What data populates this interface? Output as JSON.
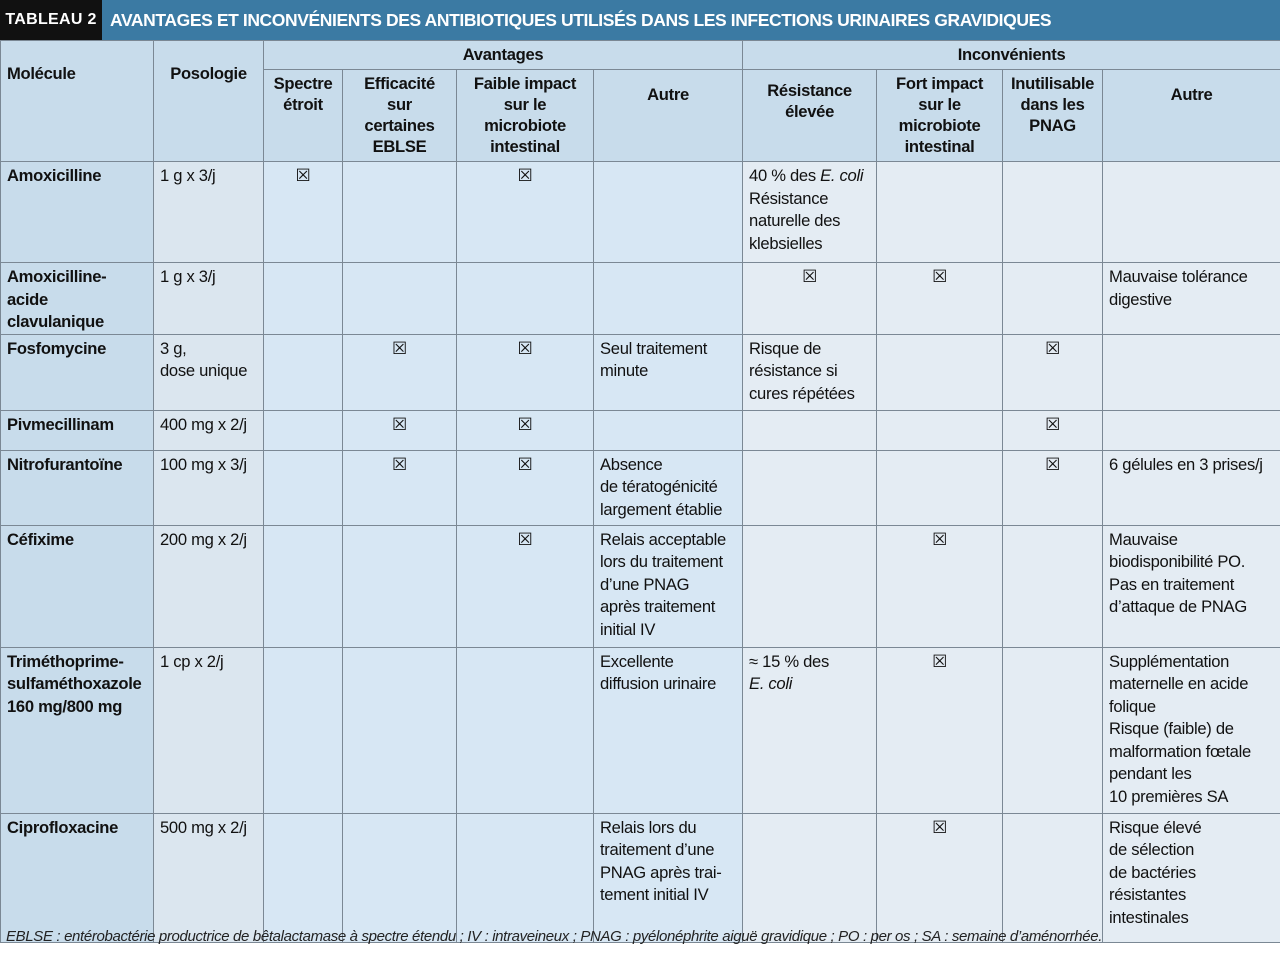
{
  "banner": {
    "tag": "TABLEAU 2",
    "title": "AVANTAGES ET INCONVÉNIENTS DES ANTIBIOTIQUES UTILISÉS DANS LES INFECTIONS URINAIRES GRAVIDIQUES"
  },
  "header": {
    "molecule": "Molécule",
    "posologie": "Posologie",
    "avantages": "Avantages",
    "inconvenients": "Inconvénients",
    "adv": {
      "spectre": "Spectre\nétroit",
      "efficacite": "Efficacité\nsur\ncertaines\nEBLSE",
      "faible_impact": "Faible impact\nsur le\nmicrobiote\nintestinal",
      "autre": "Autre"
    },
    "inc": {
      "resistance": "Résistance\nélevée",
      "fort_impact": "Fort impact\nsur le\nmicrobiote\nintestinal",
      "inutilisable": "Inutilisable\ndans les\nPNAG",
      "autre": "Autre"
    }
  },
  "check_symbol": "☒",
  "rows": [
    {
      "molecule": "Amoxicilline",
      "posologie": "1 g x 3/j",
      "spectre": "☒",
      "efficacite": "",
      "faible_impact": "☒",
      "adv_autre": "",
      "resistance": "40 % des E. coli\nRésistance\nnaturelle des\nklebsielles",
      "fort_impact": "",
      "inutilisable": "",
      "inc_autre": ""
    },
    {
      "molecule": "Amoxicilline-acide\nclavulanique",
      "posologie": "1 g x 3/j",
      "spectre": "",
      "efficacite": "",
      "faible_impact": "",
      "adv_autre": "",
      "resistance": "☒",
      "fort_impact": "☒",
      "inutilisable": "",
      "inc_autre": "Mauvaise tolérance\ndigestive"
    },
    {
      "molecule": "Fosfomycine",
      "posologie": "3 g,\ndose unique",
      "spectre": "",
      "efficacite": "☒",
      "faible_impact": "☒",
      "adv_autre": "Seul traitement\nminute",
      "resistance": "Risque de\nrésistance si\ncures répétées",
      "fort_impact": "",
      "inutilisable": "☒",
      "inc_autre": ""
    },
    {
      "molecule": "Pivmecillinam",
      "posologie": "400 mg x 2/j",
      "spectre": "",
      "efficacite": "☒",
      "faible_impact": "☒",
      "adv_autre": "",
      "resistance": "",
      "fort_impact": "",
      "inutilisable": "☒",
      "inc_autre": ""
    },
    {
      "molecule": "Nitrofurantoïne",
      "posologie": "100 mg x 3/j",
      "spectre": "",
      "efficacite": "☒",
      "faible_impact": "☒",
      "adv_autre": "Absence\nde tératogénicité\nlargement établie",
      "resistance": "",
      "fort_impact": "",
      "inutilisable": "☒",
      "inc_autre": "6 gélules en 3 prises/j"
    },
    {
      "molecule": "Céfixime",
      "posologie": "200 mg x 2/j",
      "spectre": "",
      "efficacite": "",
      "faible_impact": "☒",
      "adv_autre": "Relais acceptable\nlors du traitement\nd’une PNAG\naprès traitement\ninitial IV",
      "resistance": "",
      "fort_impact": "☒",
      "inutilisable": "",
      "inc_autre": "Mauvaise\nbiodisponibilité PO.\nPas en traitement\nd’attaque de PNAG"
    },
    {
      "molecule": "Triméthoprime-\nsulfaméthoxazole\n160 mg/800 mg",
      "posologie": "1 cp x 2/j",
      "spectre": "",
      "efficacite": "",
      "faible_impact": "",
      "adv_autre": "Excellente\ndiffusion urinaire",
      "resistance": "≈ 15 % des\nE. coli",
      "fort_impact": "☒",
      "inutilisable": "",
      "inc_autre": "Supplémentation\nmaternelle en acide\nfolique\nRisque (faible) de\nmalformation fœtale\npendant les\n10 premières SA"
    },
    {
      "molecule": "Ciprofloxacine",
      "posologie": "500 mg x 2/j",
      "spectre": "",
      "efficacite": "",
      "faible_impact": "",
      "adv_autre": "Relais lors du\ntraitement d’une\nPNAG après trai-\ntement initial IV",
      "resistance": "",
      "fort_impact": "☒",
      "inutilisable": "",
      "inc_autre": "Risque élevé\nde sélection\nde bactéries\nrésistantes\nintestinales"
    }
  ],
  "footnote": "EBLSE : entérobactérie productrice de bêtalactamase à spectre étendu ; IV : intraveineux ; PNAG : pyélonéphrite aiguë gravidique ; PO : per os ; SA : semaine d’aménorrhée.",
  "colors": {
    "banner": "#3b7aa3",
    "tag": "#111111",
    "header": "#c8dceb",
    "advantages_cells": "#d7e7f4",
    "inconvenients_cells": "#e4ecf3",
    "grid": "#7b8894"
  }
}
